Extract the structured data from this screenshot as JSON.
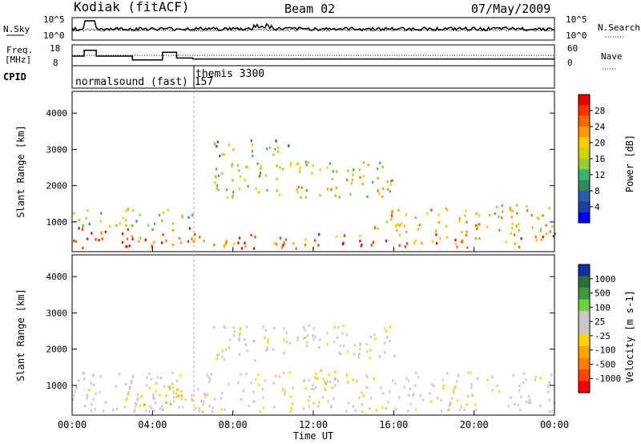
{
  "header": {
    "station": "Kodiak (fitACF)",
    "beam": "Beam 02",
    "date": "07/May/2009"
  },
  "side_labels": {
    "nsky": "N.Sky",
    "nsearch": "N.Search",
    "freq_line1": "Freq.",
    "freq_line2": "[MHz]",
    "nave": "Nave",
    "cpid": "CPID"
  },
  "cpid_labels": [
    "normalsound (fast) 157",
    "themis 3300"
  ],
  "colorbars": {
    "power": {
      "label": "Power [dB]",
      "ticks": [
        "28",
        "24",
        "20",
        "16",
        "12",
        "8",
        "4"
      ],
      "colors": [
        "#e60000",
        "#ff3300",
        "#ff6600",
        "#ff9900",
        "#ffcc00",
        "#d2d200",
        "#9acd32",
        "#3cb371",
        "#2e8b57",
        "#2a5cad",
        "#1f3f9f",
        "#0000ff"
      ]
    },
    "velocity": {
      "label": "Velocity [m s-1]",
      "ticks": [
        "1000",
        "500",
        "100",
        "25",
        "-25",
        "-100",
        "-500",
        "-1000"
      ],
      "colors": [
        "#1030a0",
        "#2e6e3c",
        "#3c9a3c",
        "#6ed23c",
        "#c8c8c8",
        "#c8c8c8",
        "#ffd700",
        "#ffa500",
        "#ff7f00",
        "#ff4500",
        "#ff0000"
      ]
    }
  },
  "axes": {
    "xlabel": "Time UT",
    "ylabel": "Slant Range [km]",
    "xticks": [
      "00:00",
      "04:00",
      "08:00",
      "12:00",
      "16:00",
      "20:00",
      "00:00"
    ],
    "yticks": [
      "1000",
      "2000",
      "3000",
      "4000"
    ],
    "nsky_ticks": [
      "10^5",
      "10^0"
    ],
    "nsearch_ticks": [
      "10^5",
      "10^0"
    ],
    "freq_ticks": [
      "18",
      "8"
    ],
    "nave_ticks": [
      "60",
      "0"
    ]
  },
  "chart_data": [
    {
      "type": "heatmap",
      "name": "power",
      "x_range_hours": [
        0,
        24
      ],
      "y_range_km": [
        180,
        4600
      ],
      "colorbar_range_db": [
        0,
        32
      ],
      "regions": [
        {
          "t": [
            0,
            6
          ],
          "r": [
            300,
            900
          ],
          "value_db": 28
        },
        {
          "t": [
            0,
            6
          ],
          "r": [
            900,
            1400
          ],
          "value_db": 16
        },
        {
          "t": [
            6,
            24
          ],
          "r": [
            300,
            700
          ],
          "value_db": 26
        },
        {
          "t": [
            15,
            24
          ],
          "r": [
            700,
            1500
          ],
          "value_db": 20
        },
        {
          "t": [
            7,
            16
          ],
          "r": [
            1700,
            2700
          ],
          "value_db": 18
        },
        {
          "t": [
            7,
            11
          ],
          "r": [
            2800,
            3300
          ],
          "value_db": 12
        }
      ]
    },
    {
      "type": "heatmap",
      "name": "velocity",
      "x_range_hours": [
        0,
        24
      ],
      "y_range_km": [
        180,
        4600
      ],
      "colorbar_range_ms": [
        -1000,
        1000
      ],
      "regions": [
        {
          "t": [
            0,
            24
          ],
          "r": [
            300,
            1400
          ],
          "value_ms": 0
        },
        {
          "t": [
            3,
            6
          ],
          "r": [
            500,
            1000
          ],
          "value_ms": -200
        },
        {
          "t": [
            4,
            6
          ],
          "r": [
            400,
            700
          ],
          "value_ms": 150
        },
        {
          "t": [
            7,
            16
          ],
          "r": [
            1700,
            2700
          ],
          "value_ms": 0
        },
        {
          "t": [
            12,
            14
          ],
          "r": [
            1000,
            1500
          ],
          "value_ms": -200
        }
      ]
    },
    {
      "type": "line",
      "name": "frequency",
      "x": [
        0,
        0.6,
        1.2,
        3.0,
        4.5,
        5.2,
        6,
        24
      ],
      "y_mhz": [
        13,
        16,
        13,
        11,
        15,
        12,
        11.5,
        11.5
      ]
    }
  ]
}
